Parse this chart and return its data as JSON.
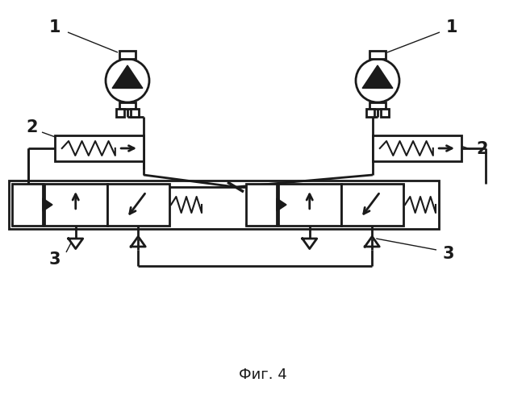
{
  "title": "Фиг. 4",
  "bg_color": "#ffffff",
  "line_color": "#1a1a1a",
  "lw": 2.0,
  "label1": "1",
  "label2": "2",
  "label3": "3"
}
